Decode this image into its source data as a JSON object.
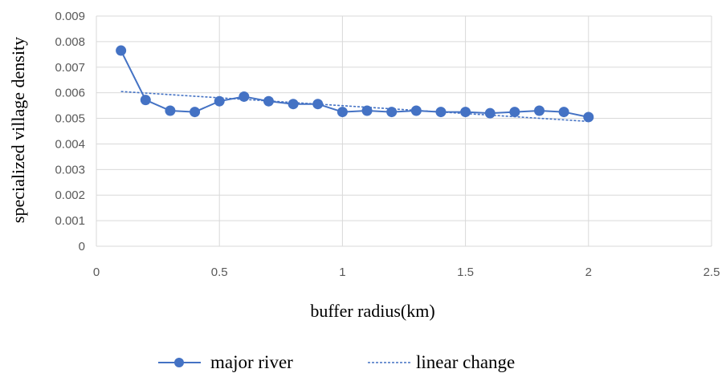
{
  "chart_data": {
    "type": "line",
    "xlabel": "buffer radius(km)",
    "ylabel": "specialized village density",
    "xlim": [
      0,
      2.5
    ],
    "ylim": [
      0,
      0.009
    ],
    "x_ticks": [
      "0",
      "0.5",
      "1",
      "1.5",
      "2",
      "2.5"
    ],
    "y_ticks": [
      "0",
      "0.001",
      "0.002",
      "0.003",
      "0.004",
      "0.005",
      "0.006",
      "0.007",
      "0.008",
      "0.009"
    ],
    "grid": true,
    "legend_position": "bottom",
    "series": [
      {
        "name": "major river",
        "style": "solid line with circle markers",
        "color": "#4472C4",
        "x": [
          0.1,
          0.2,
          0.3,
          0.4,
          0.5,
          0.6,
          0.7,
          0.8,
          0.9,
          1.0,
          1.1,
          1.2,
          1.3,
          1.4,
          1.5,
          1.6,
          1.7,
          1.8,
          1.9,
          2.0
        ],
        "y": [
          0.00765,
          0.00572,
          0.0053,
          0.00525,
          0.00567,
          0.00585,
          0.00567,
          0.00556,
          0.00556,
          0.00525,
          0.0053,
          0.00525,
          0.0053,
          0.00525,
          0.00525,
          0.0052,
          0.00525,
          0.0053,
          0.00525,
          0.00505
        ]
      },
      {
        "name": "linear change",
        "style": "dotted trend line",
        "color": "#4472C4",
        "x": [
          0.1,
          2.0
        ],
        "y": [
          0.00605,
          0.00488
        ]
      }
    ]
  }
}
